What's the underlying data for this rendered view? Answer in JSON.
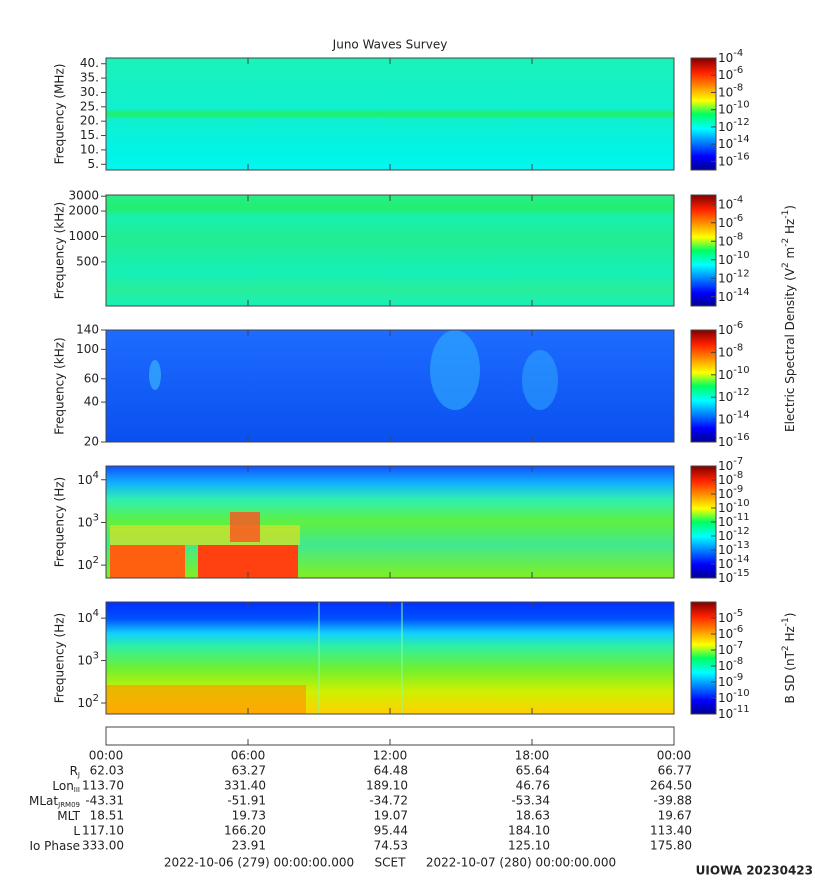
{
  "title": "Juno Waves Survey",
  "chart_data": [
    {
      "type": "spectrogram",
      "ylabel": "Frequency (MHz)",
      "log": false,
      "ylim": [
        3,
        42
      ],
      "yticks": [
        {
          "value": 5,
          "label": "5."
        },
        {
          "value": 10,
          "label": "10."
        },
        {
          "value": 15,
          "label": "15."
        },
        {
          "value": 20,
          "label": "20."
        },
        {
          "value": 25,
          "label": "25."
        },
        {
          "value": 30,
          "label": "30."
        },
        {
          "value": 35,
          "label": "35."
        },
        {
          "value": 40,
          "label": "40."
        }
      ],
      "clim": [
        1e-17,
        0.0001
      ],
      "cticks": [
        {
          "value": 0.0001,
          "label": "10",
          "exponent": "-4"
        },
        {
          "value": 1e-06,
          "label": "10",
          "exponent": "-6"
        },
        {
          "value": 1e-08,
          "label": "10",
          "exponent": "-8"
        },
        {
          "value": 1e-10,
          "label": "10",
          "exponent": "-10"
        },
        {
          "value": 1e-12,
          "label": "10",
          "exponent": "-12"
        },
        {
          "value": 1e-14,
          "label": "10",
          "exponent": "-14"
        },
        {
          "value": 1e-16,
          "label": "10",
          "exponent": "-16"
        }
      ]
    },
    {
      "type": "spectrogram",
      "ylabel": "Frequency (kHz)",
      "log": true,
      "ylim": [
        150,
        3100
      ],
      "yticks": [
        500,
        1000,
        2000,
        3000
      ],
      "clim": [
        1e-15,
        0.001
      ],
      "cticks": [
        {
          "value": 0.0001,
          "label": "10",
          "exponent": "-4"
        },
        {
          "value": 1e-06,
          "label": "10",
          "exponent": "-6"
        },
        {
          "value": 1e-08,
          "label": "10",
          "exponent": "-8"
        },
        {
          "value": 1e-10,
          "label": "10",
          "exponent": "-10"
        },
        {
          "value": 1e-12,
          "label": "10",
          "exponent": "-12"
        },
        {
          "value": 1e-14,
          "label": "10",
          "exponent": "-14"
        }
      ],
      "colorbar_label": [
        "Electric Spectral Density (V",
        "2",
        " m",
        "-2",
        " Hz",
        "-1",
        ")"
      ]
    },
    {
      "type": "spectrogram",
      "ylabel": "Frequency (kHz)",
      "log": true,
      "ylim": [
        20,
        140
      ],
      "yticks": [
        20,
        40,
        60,
        100,
        140
      ],
      "clim": [
        1e-16,
        1e-06
      ],
      "cticks": [
        {
          "value": 1e-06,
          "label": "10",
          "exponent": "-6"
        },
        {
          "value": 1e-08,
          "label": "10",
          "exponent": "-8"
        },
        {
          "value": 1e-10,
          "label": "10",
          "exponent": "-10"
        },
        {
          "value": 1e-12,
          "label": "10",
          "exponent": "-12"
        },
        {
          "value": 1e-14,
          "label": "10",
          "exponent": "-14"
        },
        {
          "value": 1e-16,
          "label": "10",
          "exponent": "-16"
        }
      ]
    },
    {
      "type": "spectrogram",
      "ylabel": "Frequency (Hz)",
      "log": true,
      "ylim": [
        50,
        21000
      ],
      "yticks": [
        {
          "value": 100,
          "label": "10",
          "exponent": "2"
        },
        {
          "value": 1000,
          "label": "10",
          "exponent": "3"
        },
        {
          "value": 10000,
          "label": "10",
          "exponent": "4"
        }
      ],
      "clim": [
        1e-15,
        1e-07
      ],
      "cticks": [
        {
          "value": 1e-07,
          "label": "10",
          "exponent": "-7"
        },
        {
          "value": 1e-08,
          "label": "10",
          "exponent": "-8"
        },
        {
          "value": 1e-09,
          "label": "10",
          "exponent": "-9"
        },
        {
          "value": 1e-10,
          "label": "10",
          "exponent": "-10"
        },
        {
          "value": 1e-11,
          "label": "10",
          "exponent": "-11"
        },
        {
          "value": 1e-12,
          "label": "10",
          "exponent": "-12"
        },
        {
          "value": 1e-13,
          "label": "10",
          "exponent": "-13"
        },
        {
          "value": 1e-14,
          "label": "10",
          "exponent": "-14"
        },
        {
          "value": 1e-15,
          "label": "10",
          "exponent": "-15"
        }
      ]
    },
    {
      "type": "spectrogram",
      "ylabel": "Frequency (Hz)",
      "log": true,
      "ylim": [
        55,
        24000
      ],
      "yticks": [
        {
          "value": 100,
          "label": "10",
          "exponent": "2"
        },
        {
          "value": 1000,
          "label": "10",
          "exponent": "3"
        },
        {
          "value": 10000,
          "label": "10",
          "exponent": "4"
        }
      ],
      "clim": [
        1e-11,
        0.0001
      ],
      "cticks": [
        {
          "value": 1e-05,
          "label": "10",
          "exponent": "-5"
        },
        {
          "value": 1e-06,
          "label": "10",
          "exponent": "-6"
        },
        {
          "value": 1e-07,
          "label": "10",
          "exponent": "-7"
        },
        {
          "value": 1e-08,
          "label": "10",
          "exponent": "-8"
        },
        {
          "value": 1e-09,
          "label": "10",
          "exponent": "-9"
        },
        {
          "value": 1e-10,
          "label": "10",
          "exponent": "-10"
        },
        {
          "value": 1e-11,
          "label": "10",
          "exponent": "-11"
        }
      ],
      "colorbar_label": [
        "B SD (nT",
        "2",
        " Hz",
        "-1",
        ")"
      ]
    }
  ],
  "ephemeris": {
    "times": [
      "00:00",
      "06:00",
      "12:00",
      "18:00",
      "00:00"
    ],
    "rows": [
      {
        "label": "R",
        "sub": "J",
        "values": [
          "62.03",
          "63.27",
          "64.48",
          "65.64",
          "66.77"
        ]
      },
      {
        "label": "Lon",
        "sub": "III",
        "values": [
          "113.70",
          "331.40",
          "189.10",
          "46.76",
          "264.50"
        ]
      },
      {
        "label": "MLat",
        "sub": "JRM09",
        "values": [
          "-43.31",
          "-51.91",
          "-34.72",
          "-53.34",
          "-39.88"
        ]
      },
      {
        "label": "MLT",
        "values": [
          "18.51",
          "19.73",
          "19.07",
          "18.63",
          "19.67"
        ]
      },
      {
        "label": "L",
        "values": [
          "117.10",
          "166.20",
          "95.44",
          "184.10",
          "113.40"
        ]
      },
      {
        "label": "Io Phase",
        "values": [
          "333.00",
          "23.91",
          "74.53",
          "125.10",
          "175.80"
        ]
      }
    ]
  },
  "footer": {
    "start": "2022-10-06 (279) 00:00:00.000",
    "scet": "SCET",
    "end": "2022-10-07 (280) 00:00:00.000",
    "stamp": "UIOWA 20230423"
  }
}
